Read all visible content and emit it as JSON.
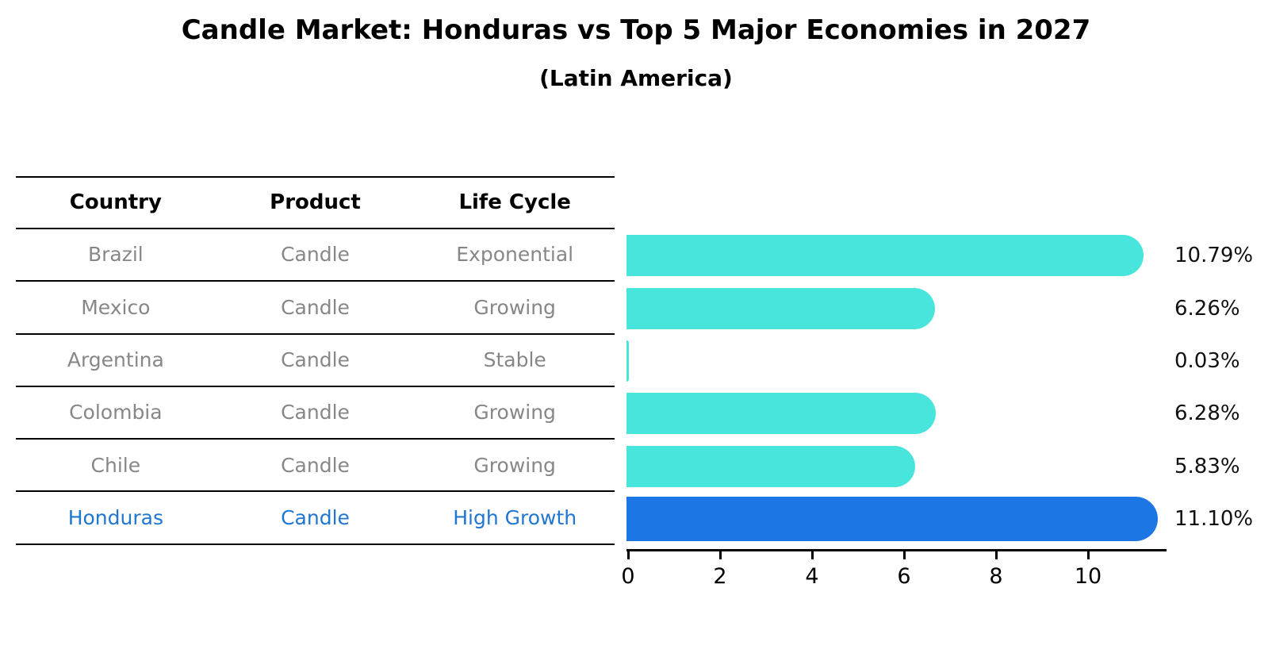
{
  "title": "Candle Market: Honduras vs Top 5 Major Economies in 2027",
  "subtitle": "(Latin America)",
  "table": {
    "headers": [
      "Country",
      "Product",
      "Life Cycle"
    ],
    "rows": [
      {
        "country": "Brazil",
        "product": "Candle",
        "life_cycle": "Exponential",
        "highlight": false
      },
      {
        "country": "Mexico",
        "product": "Candle",
        "life_cycle": "Growing",
        "highlight": false
      },
      {
        "country": "Argentina",
        "product": "Candle",
        "life_cycle": "Stable",
        "highlight": false
      },
      {
        "country": "Colombia",
        "product": "Candle",
        "life_cycle": "Growing",
        "highlight": false
      },
      {
        "country": "Chile",
        "product": "Candle",
        "life_cycle": "Growing",
        "highlight": false
      },
      {
        "country": "Honduras",
        "product": "Candle",
        "life_cycle": "High Growth",
        "highlight": true
      }
    ]
  },
  "chart_data": {
    "type": "bar",
    "orientation": "horizontal",
    "title": "Candle Market: Honduras vs Top 5 Major Economies in 2027",
    "subtitle": "(Latin America)",
    "categories": [
      "Brazil",
      "Mexico",
      "Argentina",
      "Colombia",
      "Chile",
      "Honduras"
    ],
    "values": [
      10.79,
      6.26,
      0.03,
      6.28,
      5.83,
      11.1
    ],
    "value_labels": [
      "10.79%",
      "6.26%",
      "0.03%",
      "6.28%",
      "5.83%",
      "11.10%"
    ],
    "unit": "percent",
    "xlim": [
      0,
      11.7
    ],
    "xticks": [
      0,
      2,
      4,
      6,
      8,
      10
    ],
    "grid": false,
    "legend": null,
    "highlight_category": "Honduras",
    "bar_color": "#48E5DC",
    "highlight_color": "#1C76E3"
  },
  "colors": {
    "background": "#FFFFFF",
    "table_text": "#878787",
    "header_text": "#000000",
    "highlight_text": "#2176D2",
    "axis": "#000000",
    "value_label_text": "#111111"
  }
}
